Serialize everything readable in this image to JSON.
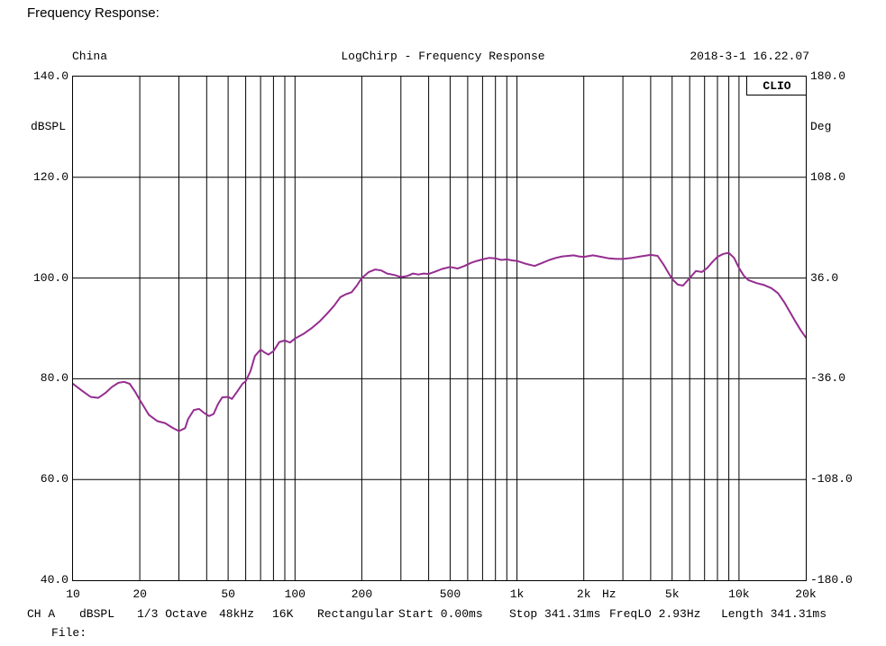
{
  "page_title": "Frequency Response:",
  "header": {
    "left": "China",
    "center": "LogChirp - Frequency Response",
    "right": "2018-3-1 16.22.07"
  },
  "brand": "CLIO",
  "chart_data": {
    "type": "line",
    "title": "LogChirp - Frequency Response",
    "x_axis": {
      "scale": "log",
      "min": 10,
      "max": 20000,
      "unit": "Hz",
      "ticks": [
        {
          "f": 10,
          "label": "10"
        },
        {
          "f": 20,
          "label": "20"
        },
        {
          "f": 50,
          "label": "50"
        },
        {
          "f": 100,
          "label": "100"
        },
        {
          "f": 200,
          "label": "200"
        },
        {
          "f": 500,
          "label": "500"
        },
        {
          "f": 1000,
          "label": "1k"
        },
        {
          "f": 2000,
          "label": "2k"
        },
        {
          "f": 5000,
          "label": "5k"
        },
        {
          "f": 10000,
          "label": "10k"
        },
        {
          "f": 20000,
          "label": "20k"
        }
      ]
    },
    "y_left": {
      "label": "dBSPL",
      "min": 40,
      "max": 140,
      "grid": [
        120,
        100,
        80,
        60
      ],
      "ticks": [
        {
          "v": 140,
          "label": "140.0"
        },
        {
          "v": 120,
          "label": "120.0"
        },
        {
          "v": 100,
          "label": "100.0"
        },
        {
          "v": 80,
          "label": "80.0"
        },
        {
          "v": 60,
          "label": "60.0"
        },
        {
          "v": 40,
          "label": "40.0"
        }
      ]
    },
    "y_right": {
      "label": "Deg",
      "min": -180,
      "max": 180,
      "ticks": [
        {
          "v": 180,
          "label": "180.0"
        },
        {
          "v": 108,
          "label": "108.0"
        },
        {
          "v": 36,
          "label": "36.0"
        },
        {
          "v": -36,
          "label": "-36.0"
        },
        {
          "v": -108,
          "label": "-108.0"
        },
        {
          "v": -180,
          "label": "-180.0"
        }
      ]
    },
    "series": [
      {
        "name": "SPL",
        "color": "#952d90",
        "points": [
          [
            10,
            79.0
          ],
          [
            11,
            77.6
          ],
          [
            12,
            76.4
          ],
          [
            13,
            76.2
          ],
          [
            14,
            77.2
          ],
          [
            15,
            78.4
          ],
          [
            16,
            79.2
          ],
          [
            17,
            79.4
          ],
          [
            18,
            79.0
          ],
          [
            19,
            77.5
          ],
          [
            20,
            75.8
          ],
          [
            22,
            72.8
          ],
          [
            24,
            71.6
          ],
          [
            26,
            71.2
          ],
          [
            28,
            70.3
          ],
          [
            30,
            69.6
          ],
          [
            32,
            70.2
          ],
          [
            33,
            72.0
          ],
          [
            35,
            73.8
          ],
          [
            37,
            74.0
          ],
          [
            39,
            73.2
          ],
          [
            41,
            72.6
          ],
          [
            43,
            73.0
          ],
          [
            45,
            75.0
          ],
          [
            47,
            76.3
          ],
          [
            50,
            76.4
          ],
          [
            52,
            76.0
          ],
          [
            55,
            77.5
          ],
          [
            58,
            79.0
          ],
          [
            60,
            79.5
          ],
          [
            63,
            81.5
          ],
          [
            66,
            84.5
          ],
          [
            70,
            85.8
          ],
          [
            73,
            85.2
          ],
          [
            76,
            84.8
          ],
          [
            80,
            85.5
          ],
          [
            85,
            87.3
          ],
          [
            90,
            87.6
          ],
          [
            95,
            87.2
          ],
          [
            100,
            88.0
          ],
          [
            110,
            89.0
          ],
          [
            120,
            90.2
          ],
          [
            130,
            91.5
          ],
          [
            140,
            93.0
          ],
          [
            150,
            94.5
          ],
          [
            160,
            96.2
          ],
          [
            170,
            96.8
          ],
          [
            180,
            97.2
          ],
          [
            190,
            98.5
          ],
          [
            200,
            100.0
          ],
          [
            215,
            101.2
          ],
          [
            230,
            101.7
          ],
          [
            245,
            101.5
          ],
          [
            260,
            100.9
          ],
          [
            280,
            100.6
          ],
          [
            300,
            100.2
          ],
          [
            320,
            100.4
          ],
          [
            340,
            100.9
          ],
          [
            360,
            100.7
          ],
          [
            380,
            100.9
          ],
          [
            400,
            100.8
          ],
          [
            430,
            101.3
          ],
          [
            460,
            101.8
          ],
          [
            500,
            102.2
          ],
          [
            540,
            101.9
          ],
          [
            580,
            102.4
          ],
          [
            620,
            103.0
          ],
          [
            660,
            103.4
          ],
          [
            700,
            103.7
          ],
          [
            750,
            104.0
          ],
          [
            800,
            103.9
          ],
          [
            850,
            103.6
          ],
          [
            900,
            103.7
          ],
          [
            950,
            103.5
          ],
          [
            1000,
            103.4
          ],
          [
            1100,
            102.8
          ],
          [
            1200,
            102.4
          ],
          [
            1300,
            103.0
          ],
          [
            1400,
            103.6
          ],
          [
            1500,
            104.0
          ],
          [
            1600,
            104.3
          ],
          [
            1700,
            104.4
          ],
          [
            1800,
            104.5
          ],
          [
            1900,
            104.3
          ],
          [
            2000,
            104.2
          ],
          [
            2200,
            104.5
          ],
          [
            2400,
            104.2
          ],
          [
            2600,
            103.9
          ],
          [
            2800,
            103.8
          ],
          [
            3000,
            103.8
          ],
          [
            3300,
            104.0
          ],
          [
            3600,
            104.3
          ],
          [
            4000,
            104.6
          ],
          [
            4300,
            104.4
          ],
          [
            4600,
            102.5
          ],
          [
            5000,
            99.8
          ],
          [
            5300,
            98.7
          ],
          [
            5600,
            98.5
          ],
          [
            6000,
            100.0
          ],
          [
            6400,
            101.4
          ],
          [
            6800,
            101.2
          ],
          [
            7200,
            102.0
          ],
          [
            7600,
            103.2
          ],
          [
            8000,
            104.2
          ],
          [
            8500,
            104.8
          ],
          [
            9000,
            105.0
          ],
          [
            9500,
            104.0
          ],
          [
            10000,
            102.0
          ],
          [
            10500,
            100.5
          ],
          [
            11000,
            99.6
          ],
          [
            12000,
            99.0
          ],
          [
            13000,
            98.6
          ],
          [
            14000,
            98.0
          ],
          [
            15000,
            97.0
          ],
          [
            16000,
            95.2
          ],
          [
            17000,
            93.2
          ],
          [
            18000,
            91.3
          ],
          [
            19000,
            89.6
          ],
          [
            20000,
            88.2
          ]
        ]
      }
    ]
  },
  "statusbar": {
    "items": [
      "CH A",
      "dBSPL",
      "1/3 Octave",
      "48kHz",
      "16K",
      "Rectangular",
      "Start 0.00ms",
      "Stop 341.31ms",
      "FreqLO 2.93Hz",
      "Length 341.31ms"
    ]
  },
  "footer": {
    "file_label": "File:"
  }
}
